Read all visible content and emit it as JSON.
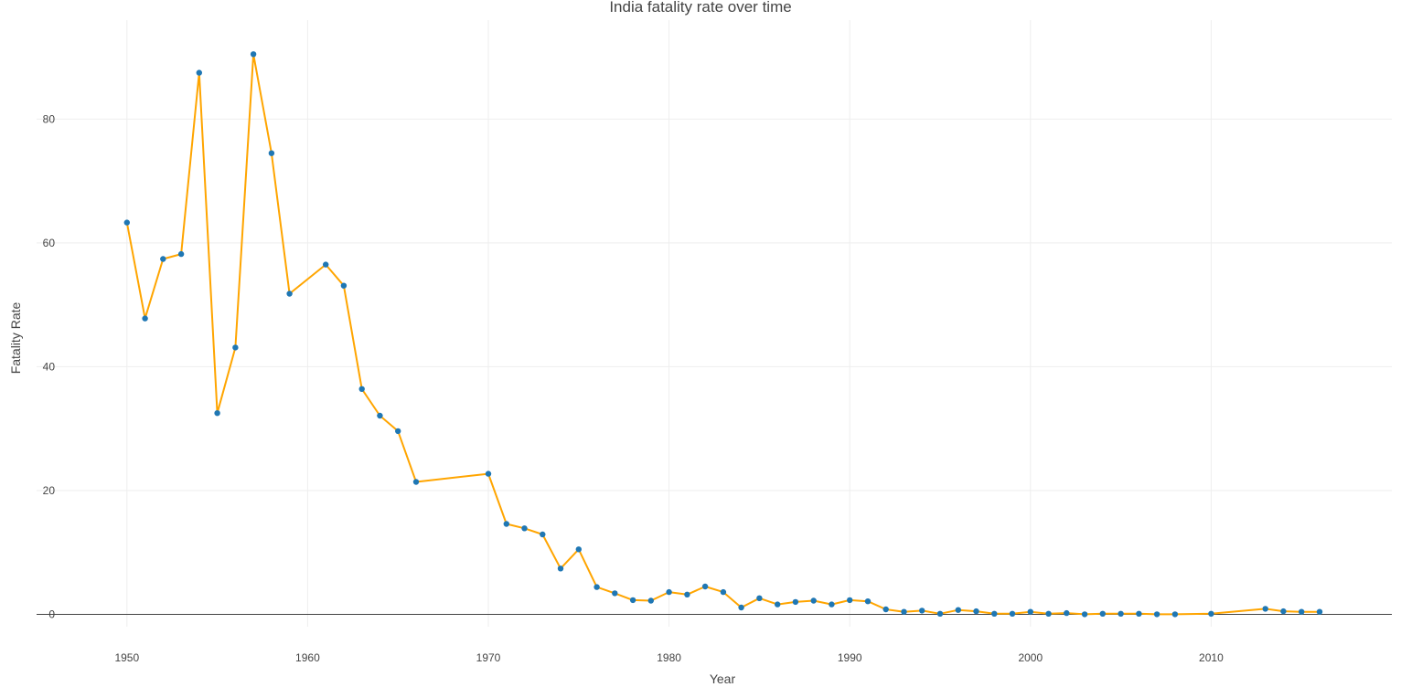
{
  "chart_data": {
    "type": "line",
    "title": "India fatality rate over time",
    "xlabel": "Year",
    "ylabel": "Fatality Rate",
    "xlim": [
      1945,
      2020
    ],
    "ylim": [
      -2,
      96
    ],
    "x_ticks": [
      1950,
      1960,
      1970,
      1980,
      1990,
      2000,
      2010
    ],
    "y_ticks": [
      0,
      20,
      40,
      60,
      80
    ],
    "grid": true,
    "line_color": "#FFA500",
    "marker_color": "#1F77B4",
    "zero_line_color": "#444444",
    "x": [
      1950,
      1951,
      1952,
      1953,
      1954,
      1955,
      1956,
      1957,
      1958,
      1959,
      1961,
      1962,
      1963,
      1964,
      1965,
      1966,
      1970,
      1971,
      1972,
      1973,
      1974,
      1975,
      1976,
      1977,
      1978,
      1979,
      1980,
      1981,
      1982,
      1983,
      1984,
      1985,
      1986,
      1987,
      1988,
      1989,
      1990,
      1991,
      1992,
      1993,
      1994,
      1995,
      1996,
      1997,
      1998,
      1999,
      2000,
      2001,
      2002,
      2003,
      2004,
      2005,
      2006,
      2007,
      2008,
      2010,
      2013,
      2014,
      2015,
      2016
    ],
    "y": [
      63.3,
      47.8,
      57.4,
      58.2,
      87.5,
      32.5,
      43.1,
      90.5,
      74.5,
      51.8,
      56.5,
      53.1,
      36.4,
      32.1,
      29.6,
      21.4,
      22.7,
      14.6,
      13.9,
      12.9,
      7.4,
      10.5,
      4.4,
      3.4,
      2.3,
      2.2,
      3.6,
      3.2,
      4.5,
      3.6,
      1.1,
      2.6,
      1.6,
      2.0,
      2.2,
      1.6,
      2.3,
      2.1,
      0.8,
      0.4,
      0.6,
      0.1,
      0.7,
      0.5,
      0.1,
      0.1,
      0.4,
      0.1,
      0.2,
      0.0,
      0.1,
      0.1,
      0.1,
      0.0,
      0.0,
      0.1,
      0.9,
      0.5,
      0.4,
      0.4
    ]
  }
}
